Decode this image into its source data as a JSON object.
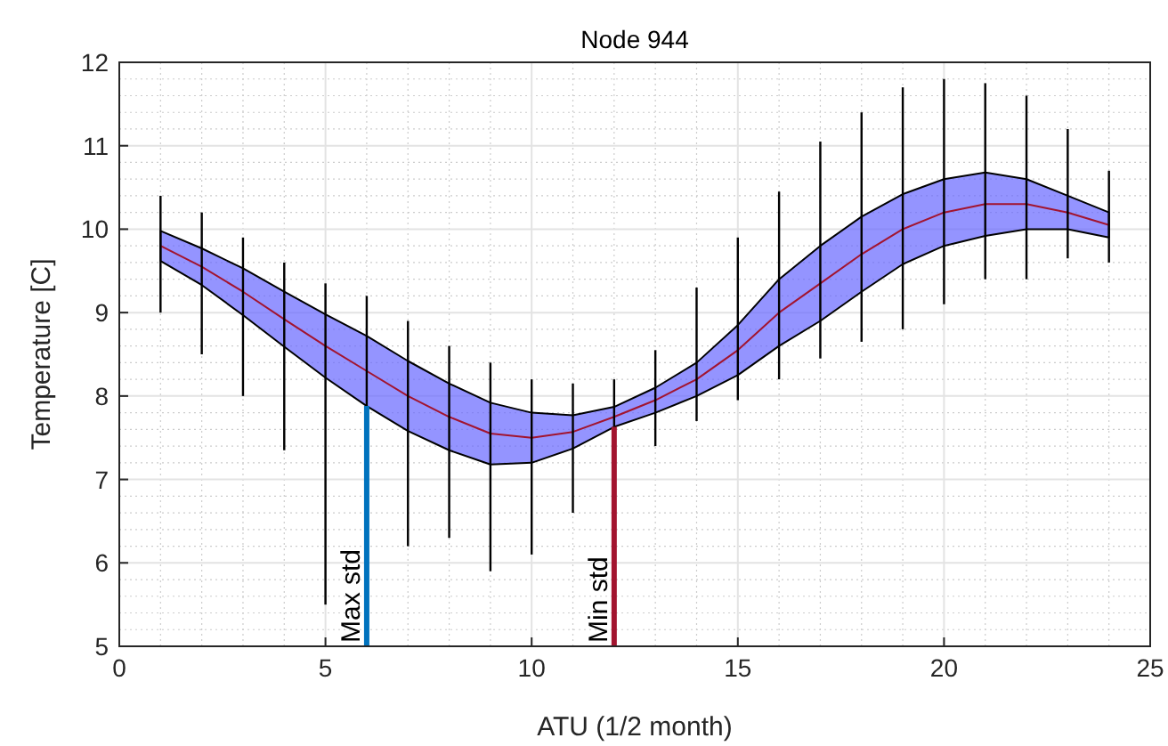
{
  "chart_data": {
    "type": "line",
    "title": "Node 944",
    "xlabel": "ATU (1/2 month)",
    "ylabel": "Temperature [C]",
    "x": [
      1,
      2,
      3,
      4,
      5,
      6,
      7,
      8,
      9,
      10,
      11,
      12,
      13,
      14,
      15,
      16,
      17,
      18,
      19,
      20,
      21,
      22,
      23,
      24
    ],
    "xlim": [
      0,
      25
    ],
    "xticks": [
      0,
      5,
      10,
      15,
      20,
      25
    ],
    "ylim": [
      5,
      12
    ],
    "yticks": [
      5,
      6,
      7,
      8,
      9,
      10,
      11,
      12
    ],
    "grid": true,
    "series": [
      {
        "type": "bar",
        "color": "#000000",
        "base": [
          9.0,
          8.5,
          8.0,
          7.35,
          5.5,
          6.3,
          6.2,
          6.3,
          5.9,
          6.1,
          6.6,
          6.8,
          7.4,
          7.7,
          7.95,
          8.2,
          8.45,
          8.65,
          8.8,
          9.1,
          9.4,
          9.4,
          9.65,
          9.6
        ],
        "values": [
          1.4,
          1.7,
          1.9,
          2.25,
          3.85,
          2.9,
          2.7,
          2.3,
          2.5,
          2.1,
          1.55,
          1.4,
          1.15,
          1.6,
          1.95,
          2.25,
          2.6,
          2.75,
          2.9,
          2.7,
          2.35,
          2.2,
          1.55,
          1.1
        ]
      },
      {
        "type": "line",
        "color": "#a2142f",
        "values": [
          9.8,
          9.55,
          9.25,
          8.92,
          8.6,
          8.3,
          8.0,
          7.75,
          7.55,
          7.5,
          7.57,
          7.75,
          7.95,
          8.2,
          8.55,
          9.0,
          9.35,
          9.7,
          10.0,
          10.2,
          10.3,
          10.3,
          10.2,
          10.05
        ],
        "lower": [
          9.62,
          9.33,
          8.97,
          8.59,
          8.22,
          7.88,
          7.58,
          7.35,
          7.18,
          7.2,
          7.37,
          7.63,
          7.8,
          8.0,
          8.25,
          8.6,
          8.9,
          9.25,
          9.58,
          9.8,
          9.92,
          10.0,
          10.0,
          9.9
        ],
        "upper": [
          9.98,
          9.77,
          9.53,
          9.25,
          8.98,
          8.72,
          8.42,
          8.15,
          7.92,
          7.8,
          7.77,
          7.87,
          8.1,
          8.4,
          8.85,
          9.4,
          9.8,
          10.15,
          10.42,
          10.6,
          10.68,
          10.6,
          10.4,
          10.2
        ]
      }
    ],
    "ref_lines": [
      {
        "axis": "x",
        "value": 6,
        "label": "Max std",
        "color": "#0072bd"
      },
      {
        "axis": "x",
        "value": 12,
        "label": "Min std",
        "color": "#a2142f"
      }
    ]
  }
}
